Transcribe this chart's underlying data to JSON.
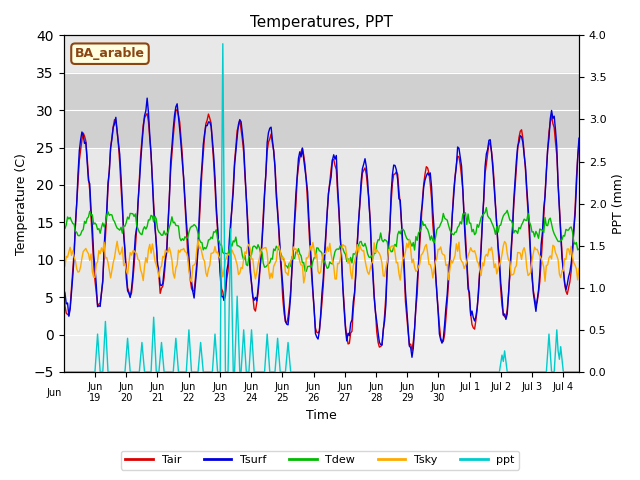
{
  "title": "Temperatures, PPT",
  "xlabel": "Time",
  "ylabel_left": "Temperature (C)",
  "ylabel_right": "PPT (mm)",
  "ylim_left": [
    -5,
    40
  ],
  "ylim_right": [
    0.0,
    4.0
  ],
  "yticks_left": [
    -5,
    0,
    5,
    10,
    15,
    20,
    25,
    30,
    35,
    40
  ],
  "yticks_right": [
    0.0,
    0.5,
    1.0,
    1.5,
    2.0,
    2.5,
    3.0,
    3.5,
    4.0
  ],
  "legend_labels": [
    "Tair",
    "Tsurf",
    "Tdew",
    "Tsky",
    "ppt"
  ],
  "legend_colors": [
    "#dd0000",
    "#0000dd",
    "#00bb00",
    "#ffaa00",
    "#00cccc"
  ],
  "annotation_text": "BA_arable",
  "annotation_color": "#8B4513",
  "bg_band_gray1_lo": 5,
  "bg_band_gray1_hi": 10,
  "bg_band_gray2_lo": 25,
  "bg_band_gray2_hi": 35,
  "bg_color_main": "#e8e8e8",
  "bg_color_dark": "#d0d0d0",
  "bg_color_light": "#f0f0f0",
  "n_days": 16.5,
  "xtick_pos": [
    1,
    2,
    3,
    4,
    5,
    6,
    7,
    8,
    9,
    10,
    11,
    12,
    13,
    14,
    15,
    16
  ],
  "xtick_lab": [
    "Jun\n19",
    "Jun\n20",
    "Jun\n21",
    "Jun\n22",
    "Jun\n23",
    "Jun\n24",
    "Jun\n25",
    "Jun\n26",
    "Jun\n27",
    "Jun\n28",
    "Jun\n29",
    "Jun\n30",
    "Jul 1",
    "Jul 2",
    "Jul 3",
    "Jul 4"
  ],
  "xlim": [
    0,
    16.5
  ]
}
